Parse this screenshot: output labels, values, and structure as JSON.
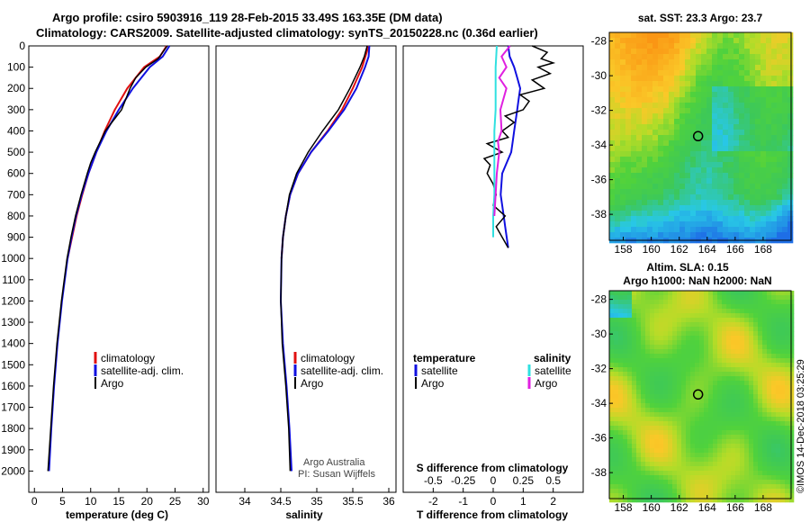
{
  "header": {
    "title_line1": "Argo profile: csiro 5903916_119 28-Feb-2015 33.49S 163.35E (DM data)",
    "title_line2": "Climatology: CARS2009. Satellite-adjusted climatology: synTS_20150228.nc (0.36d earlier)"
  },
  "colors": {
    "climatology": "#e01010",
    "satellite": "#1010e0",
    "argo": "#000000",
    "sat_salinity": "#30e0e0",
    "argo_salinity": "#e020e0"
  },
  "chart_data": [
    {
      "type": "line",
      "name": "temperature",
      "xlabel": "temperature (deg C)",
      "ylabel": "",
      "xlim": [
        -1,
        31
      ],
      "ylim": [
        2100,
        0
      ],
      "xticks": [
        "0",
        "5",
        "10",
        "15",
        "20",
        "25",
        "30"
      ],
      "yticks": [
        "0",
        "100",
        "200",
        "300",
        "400",
        "500",
        "600",
        "700",
        "800",
        "900",
        "1000",
        "1100",
        "1200",
        "1300",
        "1400",
        "1500",
        "1600",
        "1700",
        "1800",
        "1900",
        "2000"
      ],
      "legend": [
        "climatology",
        "satellite-adj. clim.",
        "Argo"
      ],
      "series": [
        {
          "name": "climatology",
          "depth": [
            0,
            50,
            100,
            200,
            300,
            400,
            500,
            600,
            700,
            800,
            900,
            1000
          ],
          "values": [
            23.5,
            22.3,
            19.5,
            16.5,
            14.3,
            12.5,
            11.0,
            9.6,
            8.5,
            7.5,
            6.7,
            5.9
          ]
        },
        {
          "name": "satellite-adj. clim.",
          "depth": [
            0,
            50,
            100,
            200,
            300,
            400,
            500,
            600,
            700,
            800,
            900,
            1000,
            1200,
            1400,
            1600,
            1800,
            2000
          ],
          "values": [
            24.0,
            22.8,
            20.5,
            17.5,
            15.0,
            12.8,
            11.0,
            9.6,
            8.4,
            7.4,
            6.6,
            5.9,
            4.9,
            4.1,
            3.5,
            3.0,
            2.6
          ]
        },
        {
          "name": "Argo",
          "depth": [
            0,
            30,
            60,
            100,
            150,
            200,
            300,
            400,
            500,
            550,
            600,
            700,
            800,
            900,
            1000,
            1200,
            1400,
            1600,
            1800,
            2000
          ],
          "values": [
            23.6,
            22.8,
            22.0,
            19.8,
            18.0,
            17.0,
            15.5,
            12.6,
            10.8,
            10.0,
            9.4,
            8.3,
            7.3,
            6.5,
            5.8,
            4.8,
            4.0,
            3.4,
            2.9,
            2.4
          ]
        }
      ]
    },
    {
      "type": "line",
      "name": "salinity",
      "xlabel": "salinity",
      "xlim": [
        33.6,
        36.1
      ],
      "ylim": [
        2100,
        0
      ],
      "xticks": [
        "34",
        "34.5",
        "35",
        "35.5",
        "36"
      ],
      "legend": [
        "climatology",
        "satellite-adj. clim.",
        "Argo"
      ],
      "credit1": "Argo Australia",
      "credit2": "PI: Susan Wijffels",
      "series": [
        {
          "name": "climatology",
          "depth": [
            0,
            100,
            200,
            300,
            400,
            500,
            600,
            700,
            800,
            900,
            1000
          ],
          "values": [
            35.72,
            35.63,
            35.5,
            35.35,
            35.15,
            34.92,
            34.74,
            34.63,
            34.57,
            34.53,
            34.51
          ]
        },
        {
          "name": "satellite-adj. clim.",
          "depth": [
            0,
            50,
            100,
            200,
            300,
            400,
            500,
            600,
            700,
            800,
            900,
            1000,
            1200,
            1400,
            1600,
            1800,
            2000
          ],
          "values": [
            35.73,
            35.72,
            35.67,
            35.55,
            35.38,
            35.16,
            34.92,
            34.74,
            34.63,
            34.57,
            34.53,
            34.51,
            34.5,
            34.53,
            34.58,
            34.62,
            34.65
          ]
        },
        {
          "name": "Argo",
          "depth": [
            0,
            50,
            100,
            200,
            300,
            400,
            500,
            600,
            700,
            800,
            900,
            1000,
            1200,
            1400,
            1600,
            1800,
            2000
          ],
          "values": [
            35.7,
            35.66,
            35.6,
            35.46,
            35.3,
            35.08,
            34.88,
            34.72,
            34.62,
            34.57,
            34.53,
            34.51,
            34.5,
            34.52,
            34.57,
            34.61,
            34.63
          ]
        }
      ]
    },
    {
      "type": "line",
      "name": "differences",
      "xlabel": "T difference from climatology",
      "xlabel_top": "S difference from climatology",
      "xlim": [
        -3,
        3
      ],
      "ylim": [
        2100,
        0
      ],
      "xticks": [
        "-2",
        "-1",
        "0",
        "1",
        "2"
      ],
      "xticks_top": [
        "-0.5",
        "-0.25",
        "0",
        "0.25",
        "0.5"
      ],
      "legend_left": {
        "header": "temperature",
        "items": [
          "satellite",
          "Argo"
        ]
      },
      "legend_right": {
        "header": "salinity",
        "items": [
          "satellite",
          "Argo"
        ]
      },
      "series": [
        {
          "name": "T satellite",
          "depth": [
            0,
            50,
            100,
            150,
            200,
            250,
            300,
            350,
            400,
            450,
            500,
            550,
            600,
            700,
            800,
            850,
            900,
            950
          ],
          "values": [
            0.5,
            0.55,
            0.7,
            0.8,
            0.9,
            0.85,
            0.8,
            0.75,
            0.7,
            0.65,
            0.6,
            0.45,
            0.3,
            0.25,
            0.35,
            0.4,
            0.45,
            0.5
          ]
        },
        {
          "name": "T Argo",
          "depth": [
            0,
            30,
            60,
            80,
            100,
            130,
            160,
            200,
            230,
            260,
            300,
            330,
            360,
            400,
            430,
            460,
            500,
            530,
            560,
            600,
            650,
            700,
            750,
            800,
            850,
            900,
            950
          ],
          "values": [
            1.3,
            1.8,
            1.6,
            2.0,
            1.5,
            1.9,
            1.3,
            1.7,
            0.9,
            1.2,
            1.0,
            0.4,
            0.7,
            0.3,
            0.5,
            -0.2,
            0.3,
            -0.3,
            -0.1,
            -0.2,
            0.0,
            0.1,
            0.0,
            0.4,
            0.1,
            0.3,
            0.5
          ]
        },
        {
          "name": "S satellite",
          "depth": [
            0,
            100,
            200,
            300,
            400,
            500,
            600,
            700,
            800,
            900
          ],
          "values": [
            0.03,
            0.02,
            0.02,
            0.02,
            0.01,
            0.01,
            0.01,
            0.01,
            0.0,
            0.0
          ]
        },
        {
          "name": "S Argo",
          "depth": [
            0,
            50,
            100,
            150,
            200,
            300,
            400,
            450,
            500,
            600,
            700,
            800
          ],
          "values": [
            0.14,
            0.07,
            0.11,
            0.05,
            0.11,
            0.06,
            0.07,
            0.04,
            0.05,
            0.03,
            0.02,
            0.01
          ]
        }
      ]
    },
    {
      "type": "heatmap",
      "name": "sst-map",
      "title": "sat. SST: 23.3 Argo: 23.7",
      "xlim": [
        157,
        170
      ],
      "ylim": [
        -39.5,
        -27.5
      ],
      "xticks": [
        "158",
        "160",
        "162",
        "164",
        "166",
        "168"
      ],
      "yticks": [
        "-28",
        "-30",
        "-32",
        "-34",
        "-36",
        "-38"
      ],
      "float_position": {
        "lon": 163.35,
        "lat": -33.49
      }
    },
    {
      "type": "heatmap",
      "name": "sla-map",
      "title1": "Altim. SLA: 0.15",
      "title2": "Argo h1000: NaN h2000: NaN",
      "xlim": [
        157,
        170
      ],
      "ylim": [
        -39.5,
        -27.5
      ],
      "xticks": [
        "158",
        "160",
        "162",
        "164",
        "166",
        "168"
      ],
      "yticks": [
        "-28",
        "-30",
        "-32",
        "-34",
        "-36",
        "-38"
      ],
      "float_position": {
        "lon": 163.35,
        "lat": -33.49
      }
    }
  ],
  "footer": {
    "stamp": "©IMOS 14-Dec-2018 03:25:29"
  }
}
